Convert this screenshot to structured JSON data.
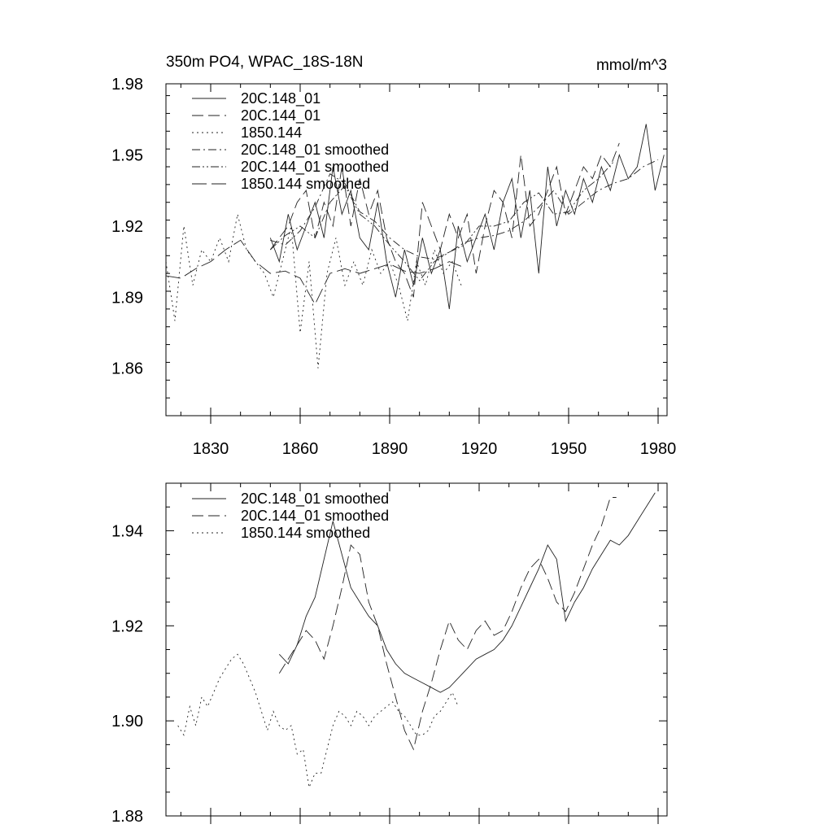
{
  "chart_data": [
    {
      "type": "line",
      "title": "350m PO4, WPAC_18S-18N",
      "units": "mmol/m^3",
      "xlim": [
        1815,
        1983
      ],
      "ylim": [
        1.84,
        1.98
      ],
      "xticks": [
        1830,
        1860,
        1890,
        1920,
        1950,
        1980
      ],
      "yticks": [
        1.86,
        1.89,
        1.92,
        1.95,
        1.98
      ],
      "yticklabels": [
        "1.86",
        "1.89",
        "1.92",
        "1.95",
        "1.98"
      ],
      "legend_position": "top-left",
      "series": [
        {
          "name": "20C.148_01",
          "style": "solid",
          "x": [
            1850,
            1853,
            1856,
            1859,
            1862,
            1865,
            1868,
            1871,
            1874,
            1877,
            1880,
            1883,
            1886,
            1889,
            1892,
            1895,
            1898,
            1901,
            1904,
            1907,
            1910,
            1913,
            1916,
            1919,
            1922,
            1925,
            1928,
            1931,
            1934,
            1937,
            1940,
            1943,
            1946,
            1949,
            1952,
            1955,
            1958,
            1961,
            1964,
            1967,
            1970,
            1973,
            1976,
            1979,
            1982
          ],
          "y": [
            1.915,
            1.905,
            1.925,
            1.91,
            1.92,
            1.93,
            1.915,
            1.945,
            1.925,
            1.935,
            1.915,
            1.91,
            1.93,
            1.905,
            1.89,
            1.91,
            1.895,
            1.915,
            1.9,
            1.91,
            1.885,
            1.92,
            1.905,
            1.915,
            1.925,
            1.91,
            1.93,
            1.94,
            1.915,
            1.935,
            1.9,
            1.945,
            1.92,
            1.935,
            1.925,
            1.94,
            1.93,
            1.945,
            1.935,
            1.95,
            1.94,
            1.945,
            1.963,
            1.935,
            1.95
          ]
        },
        {
          "name": "20C.144_01",
          "style": "dashed",
          "x": [
            1850,
            1853,
            1856,
            1859,
            1862,
            1865,
            1868,
            1871,
            1874,
            1877,
            1880,
            1883,
            1886,
            1889,
            1892,
            1895,
            1898,
            1901,
            1904,
            1907,
            1910,
            1913,
            1916,
            1919,
            1922,
            1925,
            1928,
            1931,
            1934,
            1937,
            1940,
            1943,
            1946,
            1949,
            1952,
            1955,
            1958,
            1961,
            1964,
            1967
          ],
          "y": [
            1.91,
            1.915,
            1.92,
            1.93,
            1.935,
            1.915,
            1.93,
            1.92,
            1.945,
            1.92,
            1.94,
            1.925,
            1.935,
            1.915,
            1.905,
            1.9,
            1.89,
            1.93,
            1.92,
            1.91,
            1.925,
            1.915,
            1.925,
            1.9,
            1.92,
            1.935,
            1.93,
            1.915,
            1.95,
            1.92,
            1.925,
            1.935,
            1.945,
            1.925,
            1.935,
            1.945,
            1.94,
            1.95,
            1.945,
            1.955
          ]
        },
        {
          "name": "1850.144",
          "style": "dotted",
          "x": [
            1815,
            1818,
            1821,
            1824,
            1827,
            1830,
            1833,
            1836,
            1839,
            1842,
            1845,
            1848,
            1851,
            1854,
            1857,
            1860,
            1863,
            1866,
            1869,
            1872,
            1875,
            1878,
            1881,
            1884,
            1887,
            1890,
            1893,
            1896,
            1899,
            1902,
            1905,
            1908,
            1911,
            1914
          ],
          "y": [
            1.905,
            1.88,
            1.92,
            1.895,
            1.91,
            1.905,
            1.915,
            1.905,
            1.925,
            1.91,
            1.905,
            1.9,
            1.89,
            1.905,
            1.92,
            1.875,
            1.905,
            1.86,
            1.9,
            1.915,
            1.895,
            1.905,
            1.895,
            1.91,
            1.9,
            1.905,
            1.895,
            1.88,
            1.905,
            1.895,
            1.91,
            1.9,
            1.905,
            1.895
          ]
        },
        {
          "name": "20C.148_01 smoothed",
          "style": "dashdot",
          "x": [
            1850,
            1855,
            1860,
            1865,
            1870,
            1875,
            1880,
            1885,
            1890,
            1895,
            1900,
            1905,
            1910,
            1915,
            1920,
            1925,
            1930,
            1935,
            1940,
            1945,
            1950,
            1955,
            1960,
            1965,
            1970,
            1975,
            1980
          ],
          "y": [
            1.914,
            1.912,
            1.918,
            1.928,
            1.942,
            1.938,
            1.926,
            1.922,
            1.915,
            1.91,
            1.907,
            1.906,
            1.909,
            1.913,
            1.915,
            1.916,
            1.918,
            1.922,
            1.928,
            1.935,
            1.925,
            1.93,
            1.935,
            1.938,
            1.94,
            1.945,
            1.948
          ]
        },
        {
          "name": "20C.144_01 smoothed",
          "style": "dashdotdot",
          "x": [
            1850,
            1855,
            1860,
            1865,
            1870,
            1875,
            1880,
            1885,
            1890,
            1895,
            1900,
            1905,
            1910,
            1915,
            1920,
            1925,
            1930,
            1935,
            1940,
            1945,
            1950,
            1955,
            1960,
            1965
          ],
          "y": [
            1.91,
            1.916,
            1.92,
            1.915,
            1.93,
            1.937,
            1.925,
            1.92,
            1.912,
            1.905,
            1.897,
            1.905,
            1.909,
            1.912,
            1.92,
            1.92,
            1.922,
            1.93,
            1.934,
            1.925,
            1.926,
            1.935,
            1.94,
            1.947
          ]
        },
        {
          "name": "1850.144 smoothed",
          "style": "longdash",
          "x": [
            1815,
            1820,
            1825,
            1830,
            1835,
            1840,
            1845,
            1850,
            1855,
            1860,
            1865,
            1870,
            1875,
            1880,
            1885,
            1890,
            1895,
            1900,
            1905,
            1910,
            1914
          ],
          "y": [
            1.899,
            1.898,
            1.902,
            1.905,
            1.91,
            1.914,
            1.905,
            1.9,
            1.901,
            1.898,
            1.887,
            1.9,
            1.902,
            1.9,
            1.902,
            1.904,
            1.901,
            1.9,
            1.902,
            1.905,
            1.903
          ]
        }
      ]
    },
    {
      "type": "line",
      "title": "",
      "xlim": [
        1815,
        1983
      ],
      "ylim": [
        1.88,
        1.95
      ],
      "xticks": [
        1830,
        1860,
        1890,
        1920,
        1950,
        1980
      ],
      "yticks": [
        1.88,
        1.9,
        1.92,
        1.94
      ],
      "yticklabels": [
        "1.88",
        "1.90",
        "1.92",
        "1.94"
      ],
      "legend_position": "top-left",
      "series": [
        {
          "name": "20C.148_01 smoothed",
          "style": "solid",
          "x": [
            1853,
            1856,
            1859,
            1862,
            1865,
            1868,
            1871,
            1874,
            1877,
            1880,
            1883,
            1886,
            1889,
            1892,
            1895,
            1898,
            1901,
            1904,
            1907,
            1910,
            1913,
            1916,
            1919,
            1922,
            1925,
            1928,
            1931,
            1934,
            1937,
            1940,
            1943,
            1946,
            1949,
            1952,
            1955,
            1958,
            1961,
            1964,
            1967,
            1970,
            1973,
            1976,
            1979
          ],
          "y": [
            1.914,
            1.912,
            1.916,
            1.922,
            1.926,
            1.934,
            1.942,
            1.935,
            1.928,
            1.925,
            1.922,
            1.92,
            1.915,
            1.912,
            1.91,
            1.909,
            1.908,
            1.907,
            1.906,
            1.907,
            1.909,
            1.911,
            1.913,
            1.914,
            1.915,
            1.917,
            1.92,
            1.924,
            1.928,
            1.932,
            1.937,
            1.934,
            1.921,
            1.925,
            1.928,
            1.932,
            1.935,
            1.938,
            1.937,
            1.939,
            1.942,
            1.945,
            1.948
          ]
        },
        {
          "name": "20C.144_01 smoothed",
          "style": "dashed",
          "x": [
            1853,
            1856,
            1859,
            1862,
            1865,
            1868,
            1871,
            1874,
            1877,
            1880,
            1883,
            1886,
            1889,
            1892,
            1895,
            1898,
            1901,
            1904,
            1907,
            1910,
            1913,
            1916,
            1919,
            1922,
            1925,
            1928,
            1931,
            1934,
            1937,
            1940,
            1943,
            1946,
            1949,
            1952,
            1955,
            1958,
            1961,
            1964,
            1966
          ],
          "y": [
            1.91,
            1.913,
            1.916,
            1.919,
            1.917,
            1.913,
            1.92,
            1.928,
            1.937,
            1.935,
            1.925,
            1.92,
            1.912,
            1.905,
            1.898,
            1.894,
            1.902,
            1.908,
            1.915,
            1.921,
            1.917,
            1.915,
            1.919,
            1.921,
            1.918,
            1.919,
            1.923,
            1.928,
            1.932,
            1.934,
            1.93,
            1.925,
            1.923,
            1.927,
            1.932,
            1.937,
            1.941,
            1.947,
            1.947
          ]
        },
        {
          "name": "1850.144 smoothed",
          "style": "dotted",
          "x": [
            1819,
            1821,
            1823,
            1825,
            1827,
            1829,
            1831,
            1833,
            1835,
            1837,
            1839,
            1841,
            1843,
            1845,
            1847,
            1849,
            1851,
            1853,
            1855,
            1857,
            1859,
            1861,
            1863,
            1865,
            1867,
            1869,
            1871,
            1873,
            1875,
            1877,
            1879,
            1881,
            1883,
            1885,
            1887,
            1889,
            1891,
            1893,
            1895,
            1897,
            1899,
            1901,
            1903,
            1905,
            1907,
            1909,
            1911,
            1913
          ],
          "y": [
            1.899,
            1.897,
            1.903,
            1.899,
            1.905,
            1.903,
            1.906,
            1.909,
            1.911,
            1.913,
            1.914,
            1.912,
            1.909,
            1.906,
            1.902,
            1.898,
            1.902,
            1.899,
            1.898,
            1.899,
            1.893,
            1.894,
            1.886,
            1.889,
            1.889,
            1.894,
            1.899,
            1.902,
            1.901,
            1.899,
            1.902,
            1.901,
            1.899,
            1.901,
            1.902,
            1.903,
            1.904,
            1.902,
            1.901,
            1.899,
            1.897,
            1.897,
            1.898,
            1.901,
            1.902,
            1.904,
            1.906,
            1.903
          ]
        }
      ]
    }
  ]
}
